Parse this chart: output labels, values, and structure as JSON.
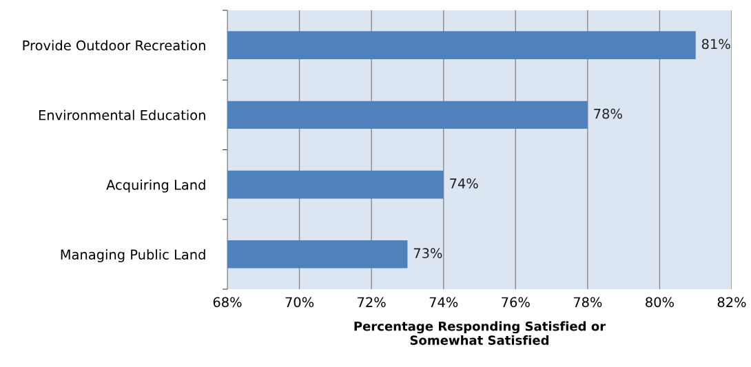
{
  "chart_data": {
    "type": "bar",
    "orientation": "horizontal",
    "categories": [
      "Provide Outdoor Recreation",
      "Environmental Education",
      "Acquiring Land",
      "Managing Public Land"
    ],
    "values": [
      81,
      78,
      74,
      73
    ],
    "value_labels": [
      "81%",
      "78%",
      "74%",
      "73%"
    ],
    "color": "#4f81bd",
    "xlabel": "Percentage Responding Satisfied or\nSomewhat Satisfied",
    "xlim": [
      68,
      82
    ],
    "xticks": [
      {
        "value": 68,
        "label": "68%"
      },
      {
        "value": 70,
        "label": "70%"
      },
      {
        "value": 72,
        "label": "72%"
      },
      {
        "value": 74,
        "label": "74%"
      },
      {
        "value": 76,
        "label": "76%"
      },
      {
        "value": 78,
        "label": "78%"
      },
      {
        "value": 80,
        "label": "80%"
      },
      {
        "value": 82,
        "label": "82%"
      }
    ],
    "grid": "x"
  }
}
